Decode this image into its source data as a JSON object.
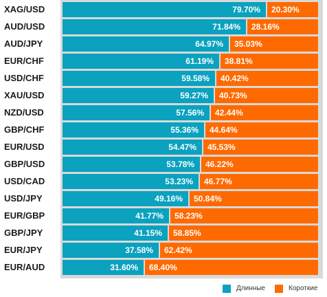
{
  "chart_data": {
    "type": "bar",
    "stacked": true,
    "orientation": "horizontal",
    "categories": [
      "XAG/USD",
      "AUD/USD",
      "AUD/JPY",
      "EUR/CHF",
      "USD/CHF",
      "XAU/USD",
      "NZD/USD",
      "GBP/CHF",
      "EUR/USD",
      "GBP/USD",
      "USD/CAD",
      "USD/JPY",
      "EUR/GBP",
      "GBP/JPY",
      "EUR/JPY",
      "EUR/AUD"
    ],
    "series": [
      {
        "name": "Длинные",
        "color": "#0aa2bf",
        "values": [
          79.7,
          71.84,
          64.97,
          61.19,
          59.58,
          59.27,
          57.56,
          55.36,
          54.47,
          53.78,
          53.23,
          49.16,
          41.77,
          41.15,
          37.58,
          31.6
        ],
        "labels": [
          "79.70%",
          "71.84%",
          "64.97%",
          "61.19%",
          "59.58%",
          "59.27%",
          "57.56%",
          "55.36%",
          "54.47%",
          "53.78%",
          "53.23%",
          "49.16%",
          "41.77%",
          "41.15%",
          "37.58%",
          "31.60%"
        ]
      },
      {
        "name": "Короткие",
        "color": "#ff6a00",
        "values": [
          20.3,
          28.16,
          35.03,
          38.81,
          40.42,
          40.73,
          42.44,
          44.64,
          45.53,
          46.22,
          46.77,
          50.84,
          58.23,
          58.85,
          62.42,
          68.4
        ],
        "labels": [
          "20.30%",
          "28.16%",
          "35.03%",
          "38.81%",
          "40.42%",
          "40.73%",
          "42.44%",
          "44.64%",
          "45.53%",
          "46.22%",
          "46.77%",
          "50.84%",
          "58.23%",
          "58.85%",
          "62.42%",
          "68.40%"
        ]
      }
    ],
    "xlim": [
      0,
      100
    ],
    "legend_position": "bottom-right",
    "grid": false
  },
  "legend": {
    "long_label": "Длинные",
    "short_label": "Короткие"
  }
}
